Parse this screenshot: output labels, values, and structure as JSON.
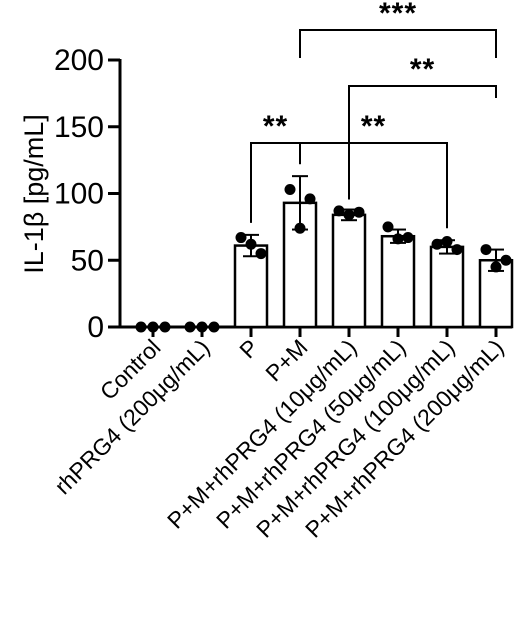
{
  "chart_data": {
    "type": "bar",
    "ylabel": "IL-1β [pg/mL]",
    "ylim": [
      0,
      200
    ],
    "yticks": [
      "0",
      "50",
      "100",
      "150",
      "200"
    ],
    "categories": [
      "Control",
      "rhPRG4 (200μg/mL)",
      "P",
      "P+M",
      "P+M+rhPRG4 (10μg/mL)",
      "P+M+rhPRG4 (50μg/mL)",
      "P+M+rhPRG4 (100μg/mL)",
      "P+M+rhPRG4 (200μg/mL)"
    ],
    "values": [
      0,
      0,
      61,
      93,
      84,
      68,
      60,
      50
    ],
    "errors": [
      0,
      0,
      8,
      20,
      4,
      5,
      5,
      8
    ],
    "points": [
      [
        0,
        0,
        0
      ],
      [
        0,
        0,
        0
      ],
      [
        67,
        62,
        55
      ],
      [
        103,
        74,
        96
      ],
      [
        87,
        84,
        86
      ],
      [
        75,
        66,
        67
      ],
      [
        62,
        64,
        58
      ],
      [
        58,
        45,
        50
      ]
    ],
    "significance": [
      {
        "from": 2,
        "to": 3,
        "label": "**"
      },
      {
        "from": 3,
        "to": 6,
        "label": "**"
      },
      {
        "from": 4,
        "to": 7,
        "label": "**"
      },
      {
        "from": 3,
        "to": 7,
        "label": "***"
      }
    ],
    "bar_color": "#ffffff",
    "stroke_color": "#000000",
    "grid": false
  }
}
